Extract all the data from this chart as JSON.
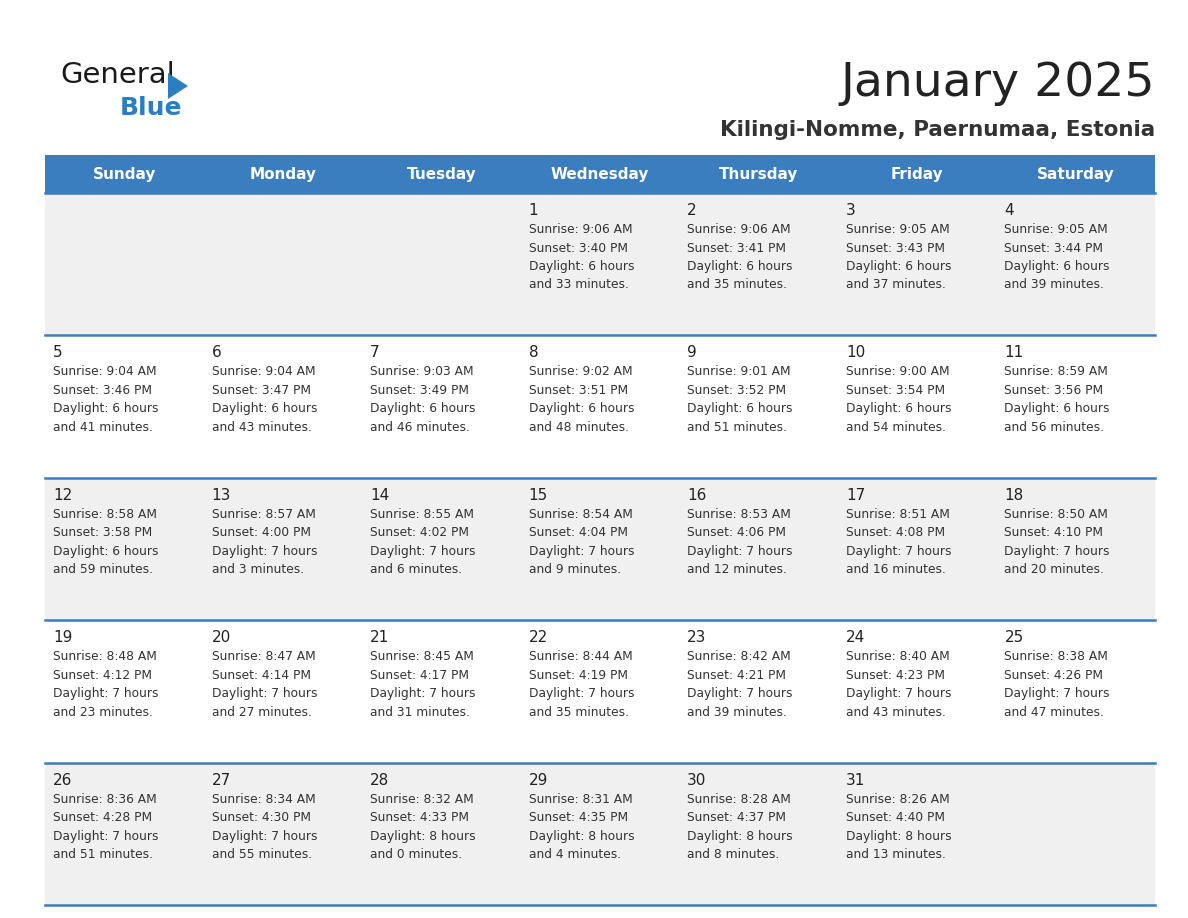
{
  "title": "January 2025",
  "subtitle": "Kilingi-Nomme, Paernumaa, Estonia",
  "days_of_week": [
    "Sunday",
    "Monday",
    "Tuesday",
    "Wednesday",
    "Thursday",
    "Friday",
    "Saturday"
  ],
  "header_bg": "#3A7EBF",
  "header_text": "#FFFFFF",
  "row_bg_odd": "#F0F0F0",
  "row_bg_even": "#FFFFFF",
  "cell_text_color": "#333333",
  "day_num_color": "#222222",
  "divider_color": "#3A7EBF",
  "title_color": "#222222",
  "subtitle_color": "#333333",
  "logo_general_color": "#1a1a1a",
  "logo_blue_color": "#2B7EC1",
  "calendar_data": [
    [
      {
        "day": "",
        "sunrise": "",
        "sunset": "",
        "daylight": ""
      },
      {
        "day": "",
        "sunrise": "",
        "sunset": "",
        "daylight": ""
      },
      {
        "day": "",
        "sunrise": "",
        "sunset": "",
        "daylight": ""
      },
      {
        "day": "1",
        "sunrise": "9:06 AM",
        "sunset": "3:40 PM",
        "daylight": "6 hours and 33 minutes."
      },
      {
        "day": "2",
        "sunrise": "9:06 AM",
        "sunset": "3:41 PM",
        "daylight": "6 hours and 35 minutes."
      },
      {
        "day": "3",
        "sunrise": "9:05 AM",
        "sunset": "3:43 PM",
        "daylight": "6 hours and 37 minutes."
      },
      {
        "day": "4",
        "sunrise": "9:05 AM",
        "sunset": "3:44 PM",
        "daylight": "6 hours and 39 minutes."
      }
    ],
    [
      {
        "day": "5",
        "sunrise": "9:04 AM",
        "sunset": "3:46 PM",
        "daylight": "6 hours and 41 minutes."
      },
      {
        "day": "6",
        "sunrise": "9:04 AM",
        "sunset": "3:47 PM",
        "daylight": "6 hours and 43 minutes."
      },
      {
        "day": "7",
        "sunrise": "9:03 AM",
        "sunset": "3:49 PM",
        "daylight": "6 hours and 46 minutes."
      },
      {
        "day": "8",
        "sunrise": "9:02 AM",
        "sunset": "3:51 PM",
        "daylight": "6 hours and 48 minutes."
      },
      {
        "day": "9",
        "sunrise": "9:01 AM",
        "sunset": "3:52 PM",
        "daylight": "6 hours and 51 minutes."
      },
      {
        "day": "10",
        "sunrise": "9:00 AM",
        "sunset": "3:54 PM",
        "daylight": "6 hours and 54 minutes."
      },
      {
        "day": "11",
        "sunrise": "8:59 AM",
        "sunset": "3:56 PM",
        "daylight": "6 hours and 56 minutes."
      }
    ],
    [
      {
        "day": "12",
        "sunrise": "8:58 AM",
        "sunset": "3:58 PM",
        "daylight": "6 hours and 59 minutes."
      },
      {
        "day": "13",
        "sunrise": "8:57 AM",
        "sunset": "4:00 PM",
        "daylight": "7 hours and 3 minutes."
      },
      {
        "day": "14",
        "sunrise": "8:55 AM",
        "sunset": "4:02 PM",
        "daylight": "7 hours and 6 minutes."
      },
      {
        "day": "15",
        "sunrise": "8:54 AM",
        "sunset": "4:04 PM",
        "daylight": "7 hours and 9 minutes."
      },
      {
        "day": "16",
        "sunrise": "8:53 AM",
        "sunset": "4:06 PM",
        "daylight": "7 hours and 12 minutes."
      },
      {
        "day": "17",
        "sunrise": "8:51 AM",
        "sunset": "4:08 PM",
        "daylight": "7 hours and 16 minutes."
      },
      {
        "day": "18",
        "sunrise": "8:50 AM",
        "sunset": "4:10 PM",
        "daylight": "7 hours and 20 minutes."
      }
    ],
    [
      {
        "day": "19",
        "sunrise": "8:48 AM",
        "sunset": "4:12 PM",
        "daylight": "7 hours and 23 minutes."
      },
      {
        "day": "20",
        "sunrise": "8:47 AM",
        "sunset": "4:14 PM",
        "daylight": "7 hours and 27 minutes."
      },
      {
        "day": "21",
        "sunrise": "8:45 AM",
        "sunset": "4:17 PM",
        "daylight": "7 hours and 31 minutes."
      },
      {
        "day": "22",
        "sunrise": "8:44 AM",
        "sunset": "4:19 PM",
        "daylight": "7 hours and 35 minutes."
      },
      {
        "day": "23",
        "sunrise": "8:42 AM",
        "sunset": "4:21 PM",
        "daylight": "7 hours and 39 minutes."
      },
      {
        "day": "24",
        "sunrise": "8:40 AM",
        "sunset": "4:23 PM",
        "daylight": "7 hours and 43 minutes."
      },
      {
        "day": "25",
        "sunrise": "8:38 AM",
        "sunset": "4:26 PM",
        "daylight": "7 hours and 47 minutes."
      }
    ],
    [
      {
        "day": "26",
        "sunrise": "8:36 AM",
        "sunset": "4:28 PM",
        "daylight": "7 hours and 51 minutes."
      },
      {
        "day": "27",
        "sunrise": "8:34 AM",
        "sunset": "4:30 PM",
        "daylight": "7 hours and 55 minutes."
      },
      {
        "day": "28",
        "sunrise": "8:32 AM",
        "sunset": "4:33 PM",
        "daylight": "8 hours and 0 minutes."
      },
      {
        "day": "29",
        "sunrise": "8:31 AM",
        "sunset": "4:35 PM",
        "daylight": "8 hours and 4 minutes."
      },
      {
        "day": "30",
        "sunrise": "8:28 AM",
        "sunset": "4:37 PM",
        "daylight": "8 hours and 8 minutes."
      },
      {
        "day": "31",
        "sunrise": "8:26 AM",
        "sunset": "4:40 PM",
        "daylight": "8 hours and 13 minutes."
      },
      {
        "day": "",
        "sunrise": "",
        "sunset": "",
        "daylight": ""
      }
    ]
  ]
}
